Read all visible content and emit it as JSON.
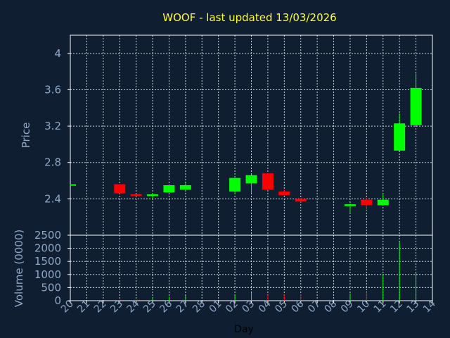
{
  "chart_data": {
    "type": "candlestick",
    "title": "WOOF - last updated 13/03/2026",
    "xlabel": "Day",
    "price_panel": {
      "ylabel": "Price",
      "ylim": [
        2.0,
        4.2
      ],
      "yticks": [
        "4",
        "3.6",
        "3.2",
        "2.8",
        "2.4"
      ],
      "ytick_values": [
        4.0,
        3.6,
        3.2,
        2.8,
        2.4
      ],
      "grid": true
    },
    "volume_panel": {
      "ylabel": "Volume (0000)",
      "ylim": [
        0,
        2500
      ],
      "yticks": [
        "2500",
        "2000",
        "1500",
        "1000",
        "500",
        "0"
      ],
      "ytick_values": [
        2500,
        2000,
        1500,
        1000,
        500,
        0
      ],
      "grid": true
    },
    "x_labels": [
      "20",
      "21",
      "22",
      "23",
      "24",
      "25",
      "26",
      "27",
      "28",
      "01",
      "02",
      "03",
      "04",
      "05",
      "06",
      "07",
      "08",
      "09",
      "10",
      "11",
      "12",
      "13",
      "14"
    ],
    "up_color": "#00ff00",
    "down_color": "#ff0000",
    "candles": [
      {
        "x": "20",
        "open": 2.55,
        "close": 2.56,
        "high": 2.56,
        "low": 2.55,
        "volume": 10
      },
      {
        "x": "23",
        "open": 2.56,
        "close": 2.46,
        "high": 2.56,
        "low": 2.46,
        "volume": 40
      },
      {
        "x": "24",
        "open": 2.45,
        "close": 2.43,
        "high": 2.45,
        "low": 2.43,
        "volume": 60
      },
      {
        "x": "25",
        "open": 2.43,
        "close": 2.45,
        "high": 2.46,
        "low": 2.4,
        "volume": 120
      },
      {
        "x": "26",
        "open": 2.47,
        "close": 2.55,
        "high": 2.55,
        "low": 2.47,
        "volume": 150
      },
      {
        "x": "27",
        "open": 2.5,
        "close": 2.55,
        "high": 2.57,
        "low": 2.5,
        "volume": 200
      },
      {
        "x": "02",
        "open": 2.48,
        "close": 2.63,
        "high": 2.63,
        "low": 2.45,
        "volume": 250
      },
      {
        "x": "03",
        "open": 2.57,
        "close": 2.66,
        "high": 2.67,
        "low": 2.46,
        "volume": 300
      },
      {
        "x": "04",
        "open": 2.68,
        "close": 2.5,
        "high": 2.68,
        "low": 2.5,
        "volume": 220
      },
      {
        "x": "05",
        "open": 2.48,
        "close": 2.44,
        "high": 2.5,
        "low": 2.44,
        "volume": 230
      },
      {
        "x": "06",
        "open": 2.4,
        "close": 2.37,
        "high": 2.4,
        "low": 2.36,
        "volume": 250
      },
      {
        "x": "09",
        "open": 2.32,
        "close": 2.34,
        "high": 2.35,
        "low": 2.24,
        "volume": 280
      },
      {
        "x": "10",
        "open": 2.39,
        "close": 2.33,
        "high": 2.4,
        "low": 2.27,
        "volume": 320
      },
      {
        "x": "11",
        "open": 2.33,
        "close": 2.39,
        "high": 2.46,
        "low": 2.33,
        "volume": 1000
      },
      {
        "x": "12",
        "open": 2.93,
        "close": 3.23,
        "high": 3.34,
        "low": 2.93,
        "volume": 2250
      },
      {
        "x": "13",
        "open": 3.21,
        "close": 3.62,
        "high": 3.78,
        "low": 3.21,
        "volume": 1050
      }
    ]
  }
}
